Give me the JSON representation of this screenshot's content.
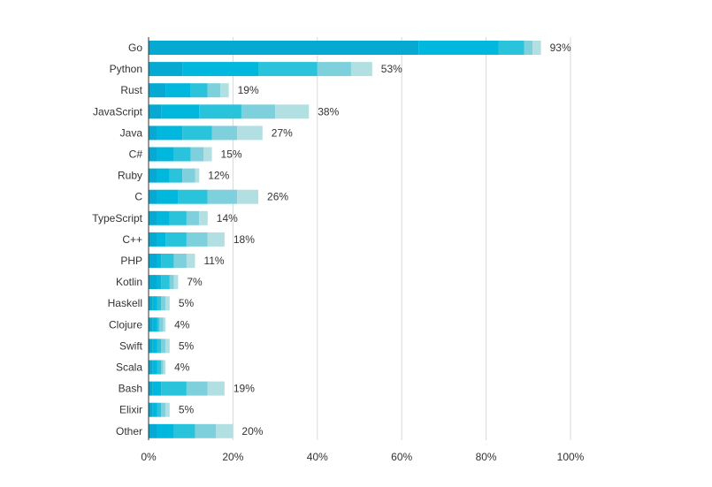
{
  "chart_data": {
    "type": "bar",
    "orientation": "horizontal",
    "stacked": true,
    "title": "",
    "xlabel": "",
    "ylabel": "",
    "xlim": [
      0,
      100
    ],
    "x_ticks": [
      "0%",
      "20%",
      "40%",
      "60%",
      "80%",
      "100%"
    ],
    "grid": "vertical",
    "legend": "none",
    "categories": [
      "Go",
      "Python",
      "Rust",
      "JavaScript",
      "Java",
      "C#",
      "Ruby",
      "C",
      "TypeScript",
      "C++",
      "PHP",
      "Kotlin",
      "Haskell",
      "Clojure",
      "Swift",
      "Scala",
      "Bash",
      "Elixir",
      "Other"
    ],
    "total_labels": [
      "93%",
      "53%",
      "19%",
      "38%",
      "27%",
      "15%",
      "12%",
      "26%",
      "14%",
      "18%",
      "11%",
      "7%",
      "5%",
      "4%",
      "5%",
      "4%",
      "19%",
      "5%",
      "20%"
    ],
    "series": [
      {
        "color": "#06a9d2",
        "values": [
          64,
          8,
          4,
          3,
          2,
          2,
          2,
          2,
          2,
          2,
          2,
          2,
          1,
          1,
          1,
          1,
          1,
          1,
          2
        ]
      },
      {
        "color": "#00b8dd",
        "values": [
          19,
          18,
          6,
          9,
          6,
          4,
          3,
          5,
          3,
          2,
          1,
          1,
          1,
          1,
          1,
          1,
          2,
          1,
          4
        ]
      },
      {
        "color": "#29c3db",
        "values": [
          6,
          14,
          4,
          10,
          7,
          4,
          3,
          7,
          4,
          5,
          3,
          2,
          1,
          0.5,
          1,
          1,
          6,
          1,
          5
        ]
      },
      {
        "color": "#7ed0dc",
        "values": [
          2,
          8,
          3,
          8,
          6,
          3,
          3,
          7,
          3,
          5,
          3,
          1,
          1,
          1,
          1,
          0.5,
          5,
          1,
          5
        ]
      },
      {
        "color": "#b2dfe2",
        "values": [
          2,
          5,
          2,
          8,
          6,
          2,
          1,
          5,
          2,
          4,
          2,
          1,
          1,
          0.5,
          1,
          0.5,
          4,
          1,
          4
        ]
      }
    ]
  }
}
